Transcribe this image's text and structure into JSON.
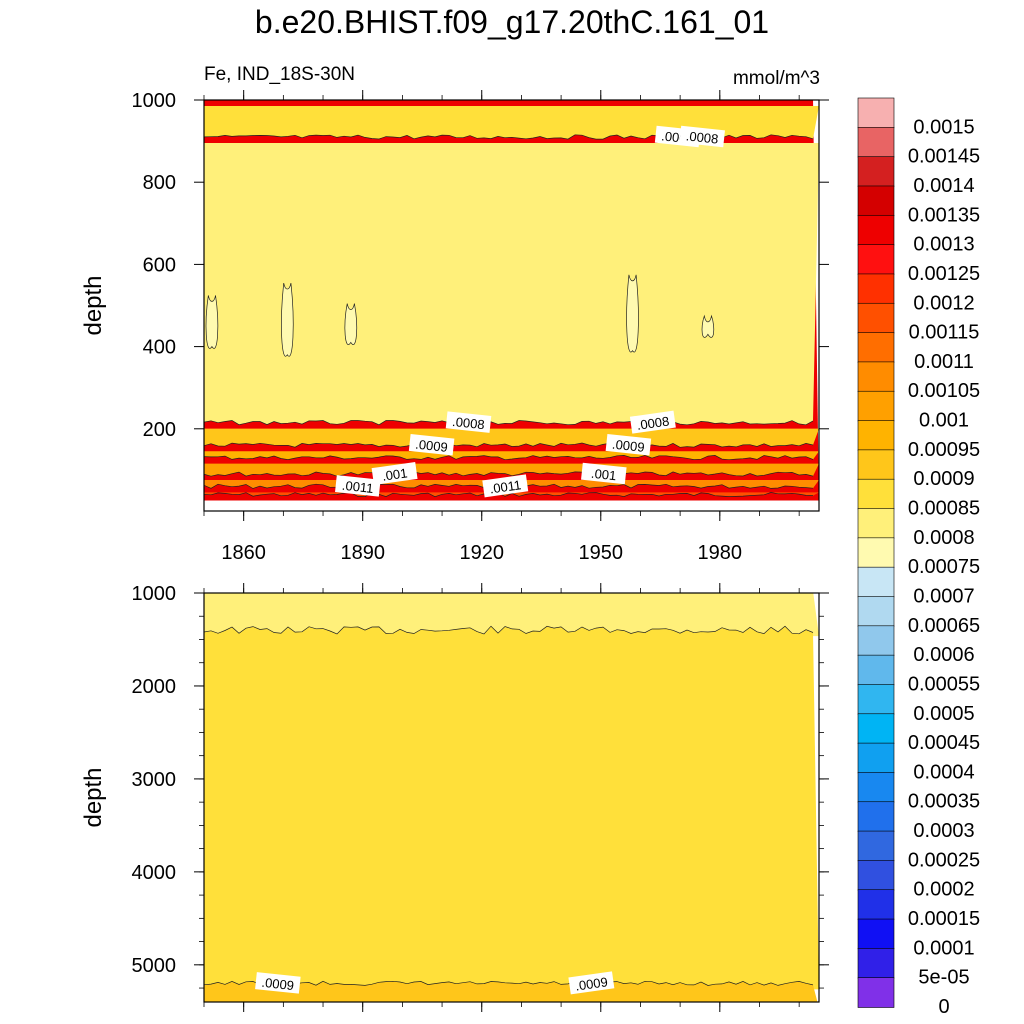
{
  "title": "b.e20.BHIST.f09_g17.20thC.161_01",
  "subtitle_left": "Fe, IND_18S-30N",
  "subtitle_right": "mmol/m^3",
  "chart_data": [
    {
      "type": "heatmap",
      "panel": "upper",
      "ylabel": "depth",
      "ylim": [
        1000,
        0
      ],
      "yticks": [
        "200",
        "400",
        "600",
        "800",
        "1000"
      ],
      "xlim": [
        1850,
        2005
      ],
      "xticks": [
        "1860",
        "1890",
        "1920",
        "1950",
        "1980"
      ],
      "contour_labels": [
        ".0011",
        ".001",
        ".0009",
        ".0008",
        ".0011",
        ".001",
        ".0009",
        ".0008",
        ".0008",
        ".0008"
      ],
      "layers": [
        {
          "from_depth": 0,
          "to_depth": 40,
          "value": 0.0013
        },
        {
          "from_depth": 40,
          "to_depth": 60,
          "value": 0.00115
        },
        {
          "from_depth": 60,
          "to_depth": 90,
          "value": 0.00105
        },
        {
          "from_depth": 90,
          "to_depth": 130,
          "value": 0.001
        },
        {
          "from_depth": 130,
          "to_depth": 160,
          "value": 0.00095
        },
        {
          "from_depth": 160,
          "to_depth": 215,
          "value": 0.0009
        },
        {
          "from_depth": 215,
          "to_depth": 910,
          "value": 0.0008
        },
        {
          "from_depth": 910,
          "to_depth": 1000,
          "value": 0.00085
        }
      ],
      "low_patches_value": 0.00075,
      "low_patches": [
        {
          "year": 1852,
          "depth_top": 400,
          "depth_bottom": 510
        },
        {
          "year": 1871,
          "depth_top": 380,
          "depth_bottom": 540
        },
        {
          "year": 1887,
          "depth_top": 410,
          "depth_bottom": 490
        },
        {
          "year": 1958,
          "depth_top": 390,
          "depth_bottom": 560
        },
        {
          "year": 1977,
          "depth_top": 430,
          "depth_bottom": 460
        }
      ]
    },
    {
      "type": "heatmap",
      "panel": "lower",
      "ylabel": "depth",
      "ylim": [
        1000,
        5400
      ],
      "yticks": [
        "1000",
        "2000",
        "3000",
        "4000",
        "5000"
      ],
      "xlim": [
        1850,
        2005
      ],
      "contour_labels": [
        ".0009",
        ".0009"
      ],
      "layers": [
        {
          "from_depth": 1000,
          "to_depth": 1400,
          "value": 0.0008
        },
        {
          "from_depth": 1400,
          "to_depth": 5200,
          "value": 0.00085
        },
        {
          "from_depth": 5200,
          "to_depth": 5400,
          "value": 0.0009
        }
      ]
    }
  ],
  "colorbar": {
    "labels": [
      "0.0015",
      "0.00145",
      "0.0014",
      "0.00135",
      "0.0013",
      "0.00125",
      "0.0012",
      "0.00115",
      "0.0011",
      "0.00105",
      "0.001",
      "0.00095",
      "0.0009",
      "0.00085",
      "0.0008",
      "0.00075",
      "0.0007",
      "0.00065",
      "0.0006",
      "0.00055",
      "0.0005",
      "0.00045",
      "0.0004",
      "0.00035",
      "0.0003",
      "0.00025",
      "0.0002",
      "0.00015",
      "0.0001",
      "5e-05",
      "0"
    ],
    "colors": [
      "#f7b0b0",
      "#e86464",
      "#d42020",
      "#d40000",
      "#ee0000",
      "#ff1010",
      "#ff3000",
      "#ff5000",
      "#ff6e00",
      "#ff8c00",
      "#ffa000",
      "#ffb300",
      "#ffc61a",
      "#ffe03a",
      "#fff07a",
      "#fffab0",
      "#c8e6f5",
      "#b0d9f0",
      "#90c8ec",
      "#60b8ec",
      "#30b6f0",
      "#00b4f4",
      "#10a0f0",
      "#1888f0",
      "#2070ec",
      "#3068e0",
      "#3050e0",
      "#2030e8",
      "#1010f4",
      "#3020e8",
      "#8030e8"
    ]
  }
}
